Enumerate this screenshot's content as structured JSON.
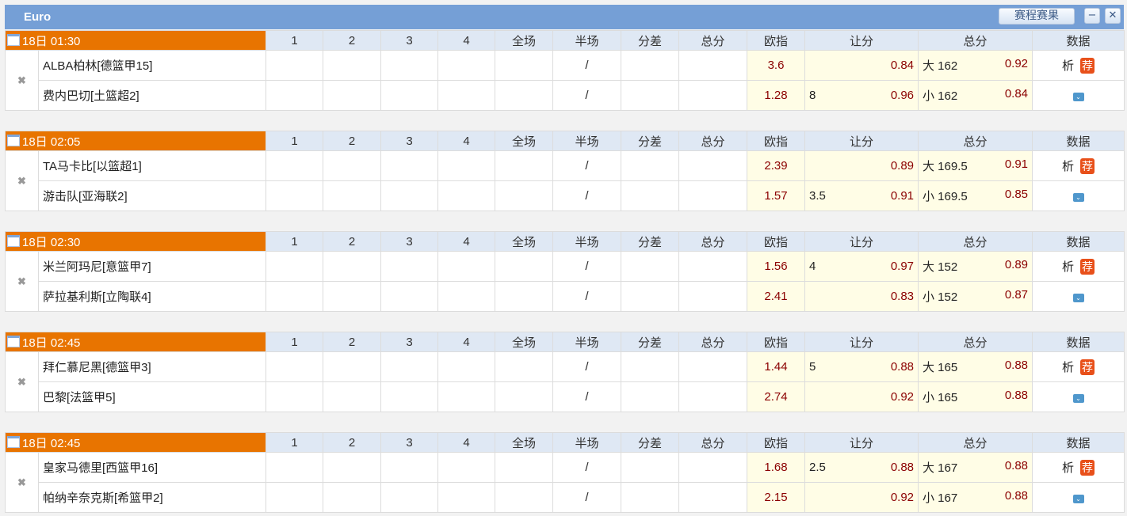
{
  "header": {
    "title": "Euro",
    "schedule_button": "赛程赛果",
    "minimize": "−",
    "close": "✕"
  },
  "columns": [
    "1",
    "2",
    "3",
    "4",
    "全场",
    "半场",
    "分差",
    "总分",
    "欧指",
    "让分",
    "总分",
    "数据"
  ],
  "labels": {
    "half_placeholder": "/",
    "analysis": "析",
    "recommend": "荐",
    "expand": "⌄"
  },
  "colors": {
    "title_bar": "#759fd6",
    "time_header": "#e87400",
    "odds_bg": "#fffde6",
    "odds_text": "#8b0000"
  },
  "matches": [
    {
      "time": "18日 01:30",
      "home": "ALBA柏林[德篮甲15]",
      "away": "费内巴切[土篮超2]",
      "home_euro": "3.6",
      "away_euro": "1.28",
      "home_hcp_line": "",
      "away_hcp_line": "8",
      "home_hcp": "0.84",
      "away_hcp": "0.96",
      "over": "大 162",
      "under": "小 162",
      "over_odds": "0.92",
      "under_odds": "0.84"
    },
    {
      "time": "18日 02:05",
      "home": "TA马卡比[以篮超1]",
      "away": "游击队[亚海联2]",
      "home_euro": "2.39",
      "away_euro": "1.57",
      "home_hcp_line": "",
      "away_hcp_line": "3.5",
      "home_hcp": "0.89",
      "away_hcp": "0.91",
      "over": "大 169.5",
      "under": "小 169.5",
      "over_odds": "0.91",
      "under_odds": "0.85"
    },
    {
      "time": "18日 02:30",
      "home": "米兰阿玛尼[意篮甲7]",
      "away": "萨拉基利斯[立陶联4]",
      "home_euro": "1.56",
      "away_euro": "2.41",
      "home_hcp_line": "4",
      "away_hcp_line": "",
      "home_hcp": "0.97",
      "away_hcp": "0.83",
      "over": "大 152",
      "under": "小 152",
      "over_odds": "0.89",
      "under_odds": "0.87"
    },
    {
      "time": "18日 02:45",
      "home": "拜仁慕尼黑[德篮甲3]",
      "away": "巴黎[法篮甲5]",
      "home_euro": "1.44",
      "away_euro": "2.74",
      "home_hcp_line": "5",
      "away_hcp_line": "",
      "home_hcp": "0.88",
      "away_hcp": "0.92",
      "over": "大 165",
      "under": "小 165",
      "over_odds": "0.88",
      "under_odds": "0.88"
    },
    {
      "time": "18日 02:45",
      "home": "皇家马德里[西篮甲16]",
      "away": "帕纳辛奈克斯[希篮甲2]",
      "home_euro": "1.68",
      "away_euro": "2.15",
      "home_hcp_line": "2.5",
      "away_hcp_line": "",
      "home_hcp": "0.88",
      "away_hcp": "0.92",
      "over": "大 167",
      "under": "小 167",
      "over_odds": "0.88",
      "under_odds": "0.88"
    }
  ]
}
